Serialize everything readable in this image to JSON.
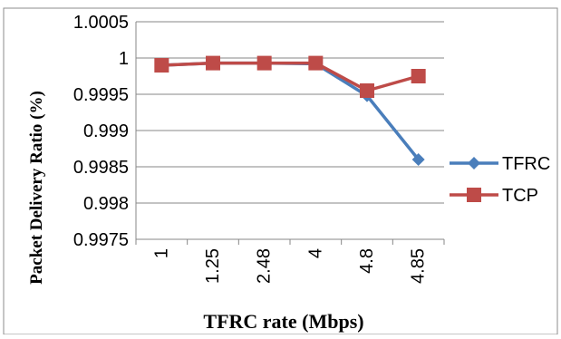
{
  "chart_data": {
    "type": "line",
    "title": "",
    "xlabel": "TFRC rate (Mbps)",
    "ylabel": "Packet Delivery Ratio (%)",
    "categories": [
      "1",
      "1.25",
      "2.48",
      "4",
      "4.8",
      "4.85"
    ],
    "ylim": [
      0.9975,
      1.0005
    ],
    "yticks": [
      "0.9975",
      "0.998",
      "0.9985",
      "0.999",
      "0.9995",
      "1",
      "1.0005"
    ],
    "grid": true,
    "legend_position": "right",
    "series": [
      {
        "name": "TFRC",
        "values": [
          0.9999,
          0.99993,
          0.99993,
          0.99992,
          0.99948,
          0.9986
        ],
        "color": "#4a7ebb",
        "marker": "diamond"
      },
      {
        "name": "TCP",
        "values": [
          0.9999,
          0.99993,
          0.99993,
          0.99993,
          0.99955,
          0.99975
        ],
        "color": "#be4b48",
        "marker": "square"
      }
    ]
  }
}
